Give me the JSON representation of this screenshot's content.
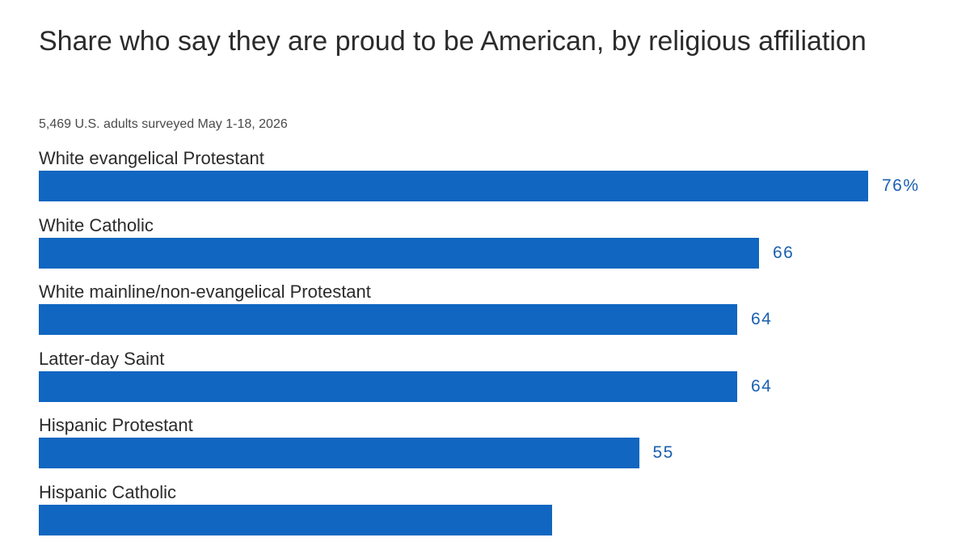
{
  "chart_data": {
    "type": "bar",
    "orientation": "horizontal",
    "title": "Share who say they are proud to be American, by religious affiliation",
    "subtitle": "5,469 U.S. adults surveyed May 1-18, 2026",
    "categories": [
      "White evangelical Protestant",
      "White Catholic",
      "White mainline/non-evangelical Protestant",
      "Latter-day Saint",
      "Hispanic Protestant",
      "Hispanic Catholic"
    ],
    "values": [
      76,
      66,
      64,
      64,
      55,
      47
    ],
    "value_labels": [
      "76%",
      "66",
      "64",
      "64",
      "55",
      ""
    ],
    "xlim": [
      0,
      76
    ],
    "bar_color": "#1066c0",
    "value_color": "#1a5fb0",
    "grid": false,
    "legend": "none"
  }
}
